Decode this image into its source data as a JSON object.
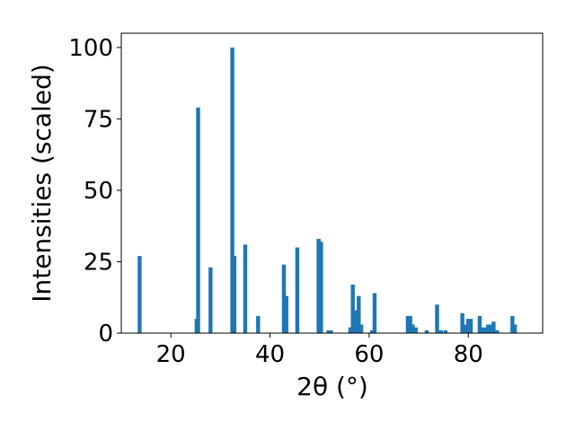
{
  "chart_data": {
    "type": "bar",
    "title": "",
    "xlabel": "2θ (°)",
    "ylabel": "Intensities (scaled)",
    "xlim": [
      10,
      95
    ],
    "ylim": [
      0,
      105
    ],
    "xticks": [
      20,
      40,
      60,
      80
    ],
    "yticks": [
      0,
      25,
      50,
      75,
      100
    ],
    "grid": false,
    "bar_color": "#1f77b4",
    "bar_width": 0.8,
    "x": [
      13.7,
      25.2,
      25.5,
      28.0,
      32.4,
      32.8,
      35.0,
      37.6,
      42.8,
      43.3,
      45.5,
      49.8,
      50.3,
      51.8,
      52.3,
      56.2,
      56.7,
      57.2,
      57.9,
      58.4,
      60.6,
      61.1,
      67.8,
      68.3,
      68.8,
      69.4,
      71.6,
      73.7,
      74.5,
      75.4,
      78.8,
      79.4,
      80.0,
      80.5,
      82.3,
      82.8,
      83.4,
      84.0,
      84.5,
      85.1,
      85.8,
      88.9,
      89.4
    ],
    "values": [
      27,
      5,
      79,
      23,
      100,
      27,
      31,
      6,
      24,
      13,
      30,
      33,
      32,
      1,
      1,
      2,
      17,
      8,
      13,
      3,
      1,
      14,
      6,
      6,
      3,
      2,
      1,
      10,
      1,
      1,
      7,
      3,
      5,
      5,
      6,
      2,
      2,
      3,
      3,
      4,
      1,
      6,
      3
    ]
  }
}
